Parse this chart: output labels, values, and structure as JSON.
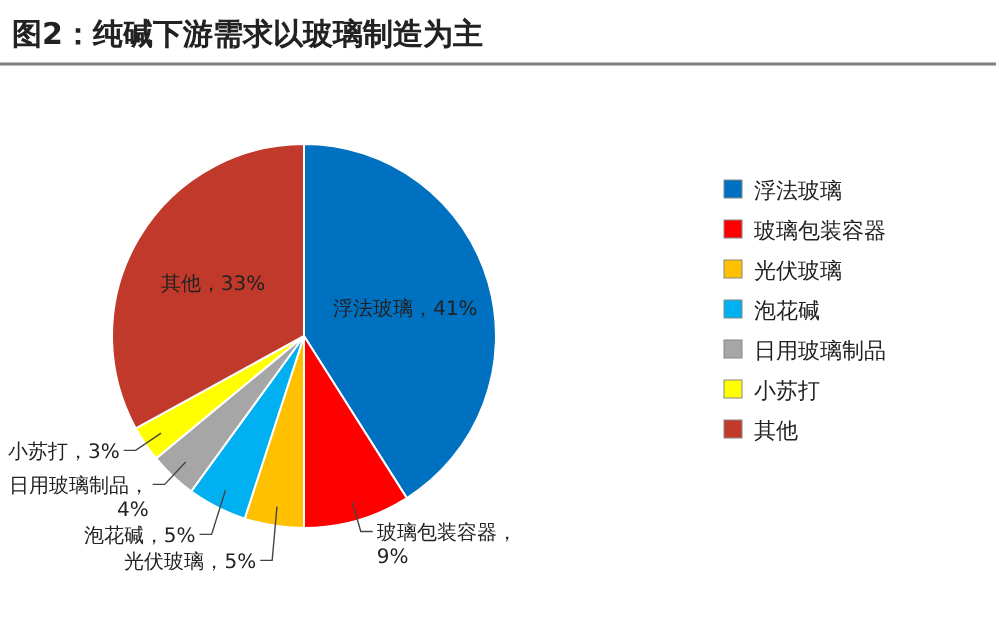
{
  "chart_data": {
    "type": "pie",
    "title": "图2：纯碱下游需求以玻璃制造为主",
    "categories": [
      "浮法玻璃",
      "玻璃包装容器",
      "光伏玻璃",
      "泡花碱",
      "日用玻璃制品",
      "小苏打",
      "其他"
    ],
    "values": [
      41,
      9,
      5,
      5,
      4,
      3,
      33
    ],
    "colors": [
      "#0070c0",
      "#ff0000",
      "#ffc000",
      "#00b0f0",
      "#a6a6a6",
      "#ffff00",
      "#c0392b"
    ],
    "value_labels": [
      "浮法玻璃，41%",
      "玻璃包装容器，9%",
      "光伏玻璃，5%",
      "泡花碱，5%",
      "日用玻璃制品，4%",
      "小苏打，3%",
      "其他，33%"
    ],
    "legend": "right"
  }
}
